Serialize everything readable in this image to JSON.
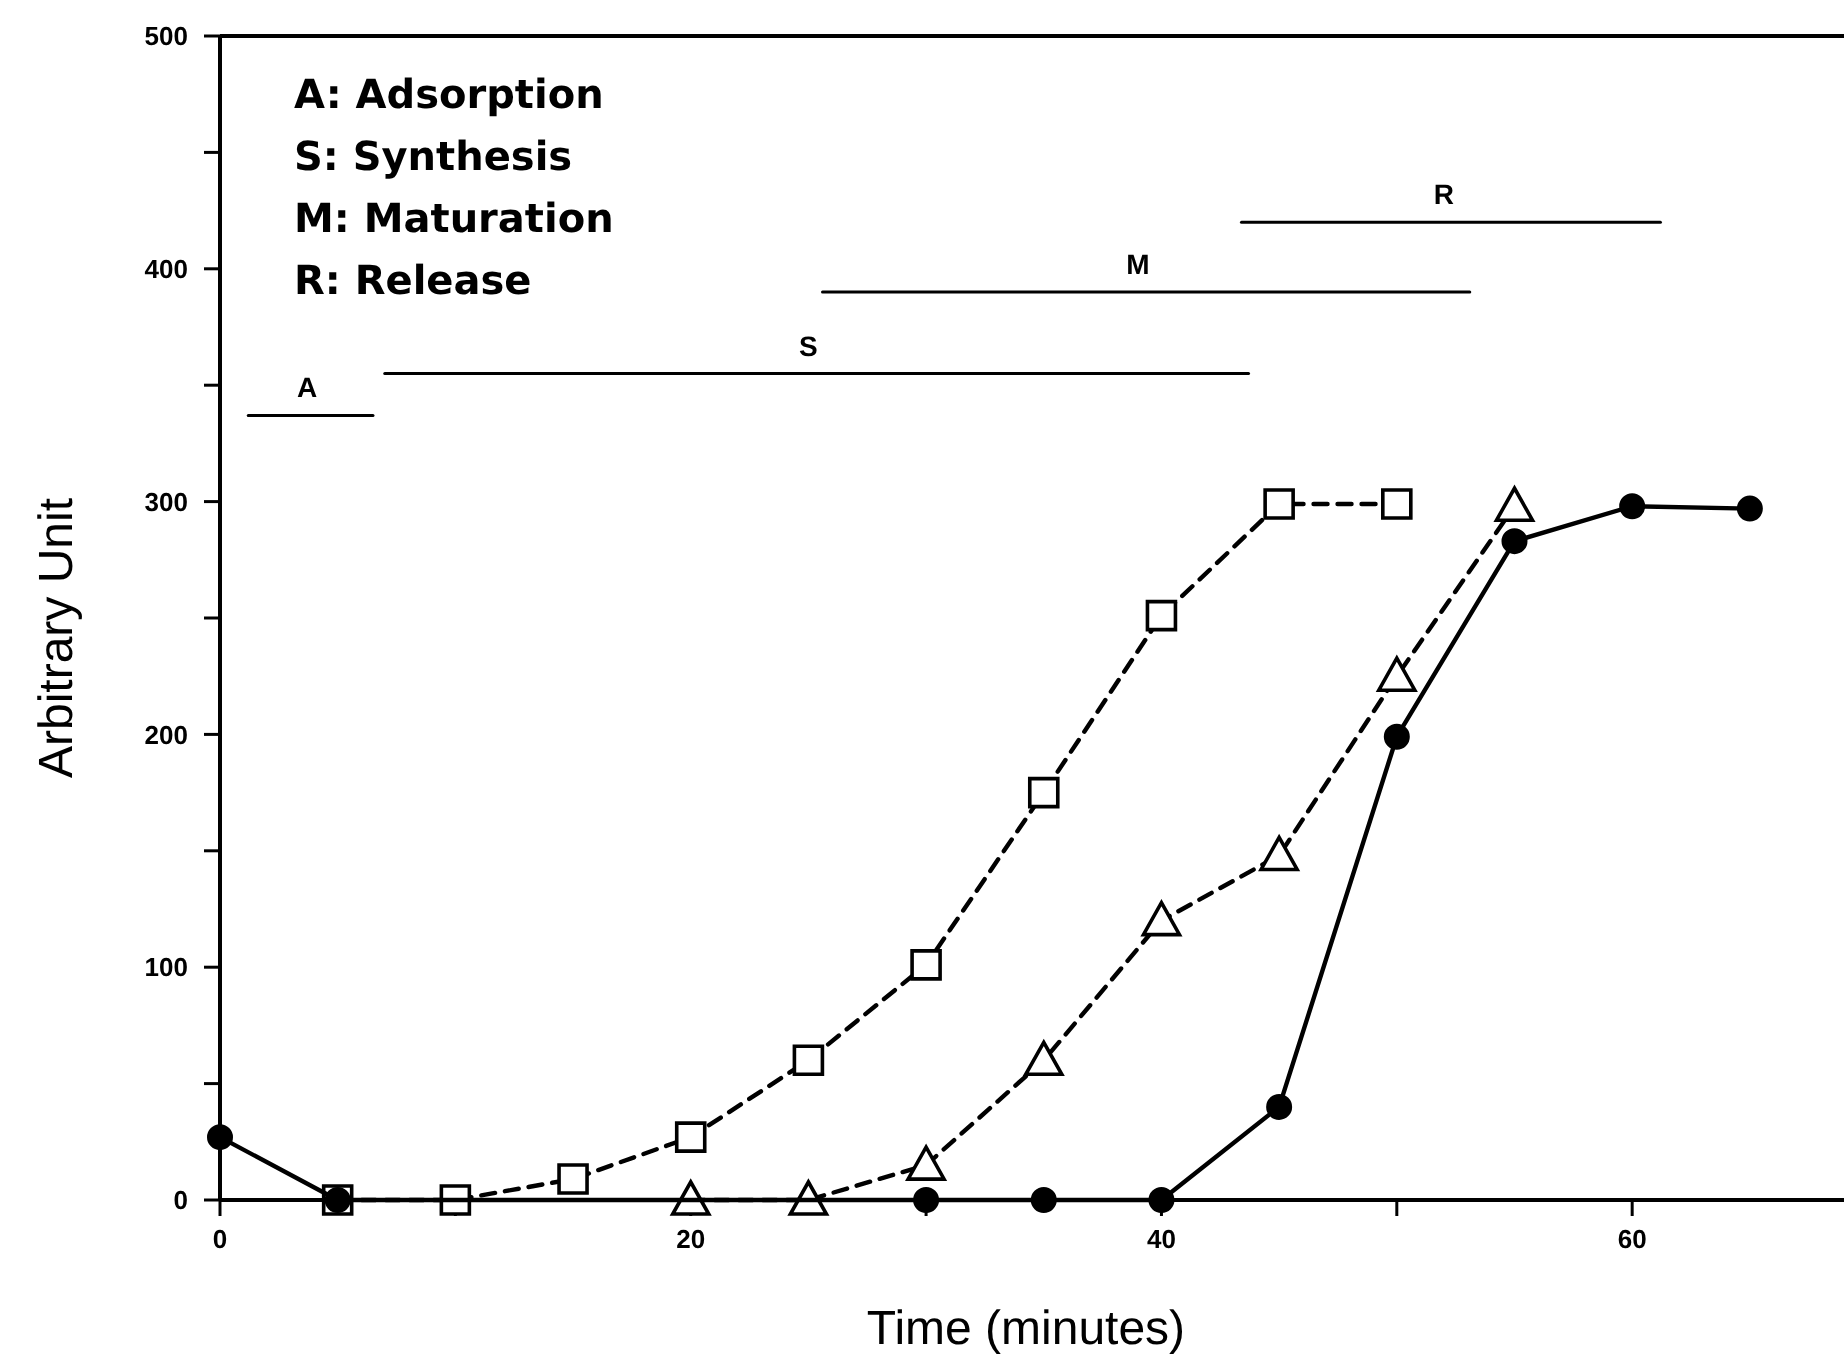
{
  "chart_data": {
    "type": "line",
    "xlabel": "Time (minutes)",
    "ylabel": "Arbitrary Unit",
    "xlim": [
      0,
      69
    ],
    "ylim": [
      0,
      500
    ],
    "xticks": [
      0,
      {
        "value": 10,
        "label": null
      },
      20,
      {
        "value": 30,
        "label": null
      },
      40,
      {
        "value": 50,
        "label": null
      },
      60
    ],
    "yticks": [
      0,
      {
        "value": 50,
        "label": null
      },
      100,
      {
        "value": 150,
        "label": null
      },
      200,
      {
        "value": 250,
        "label": null
      },
      300,
      {
        "value": 350,
        "label": null
      },
      400,
      {
        "value": 450,
        "label": null
      },
      500
    ],
    "grid": false,
    "series": [
      {
        "color": "#000000",
        "marker": "circle",
        "line_style": "solid",
        "x": [
          0,
          5,
          30,
          35,
          40,
          45,
          50,
          55,
          60,
          65
        ],
        "values": [
          27,
          0,
          0,
          0,
          0,
          40,
          199,
          283,
          298,
          297
        ]
      },
      {
        "color": "#000000",
        "marker": "triangle",
        "line_style": "dashed",
        "x": [
          20,
          25,
          30,
          35,
          40,
          45,
          50,
          55
        ],
        "values": [
          0,
          0,
          15,
          60,
          120,
          148,
          225,
          298
        ]
      },
      {
        "color": "#000000",
        "marker": "square",
        "line_style": "dashed",
        "x": [
          5,
          10,
          15,
          20,
          25,
          30,
          35,
          40,
          45,
          50
        ],
        "values": [
          0,
          0,
          9,
          27,
          60,
          101,
          175,
          251,
          299,
          299
        ]
      },
      {
        "color": "#000000",
        "marker": "none",
        "line_style": "solid",
        "x": [
          1.2,
          6.5
        ],
        "values": [
          337,
          337
        ]
      },
      {
        "color": "#000000",
        "marker": "none",
        "line_style": "solid",
        "x": [
          7,
          43.7
        ],
        "values": [
          355,
          355
        ]
      },
      {
        "color": "#000000",
        "marker": "none",
        "line_style": "solid",
        "x": [
          25.6,
          53.1
        ],
        "values": [
          390,
          390
        ]
      },
      {
        "color": "#000000",
        "marker": "none",
        "line_style": "solid",
        "x": [
          43.4,
          61.2
        ],
        "values": [
          420,
          420
        ]
      }
    ],
    "annotations": [
      "A: Adsorption",
      "S: Synthesis",
      "M: Maturation",
      "R: Release",
      {
        "text": "A",
        "x": 3.7,
        "y": 337
      },
      {
        "text": "S",
        "x": 25,
        "y": 355
      },
      {
        "text": "M",
        "x": 39,
        "y": 390
      },
      {
        "text": "R",
        "x": 52,
        "y": 420
      }
    ]
  }
}
